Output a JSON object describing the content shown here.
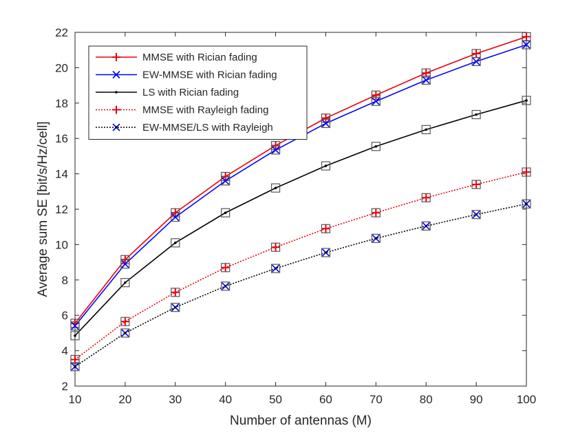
{
  "chart_data": {
    "type": "line",
    "title": "",
    "xlabel": "Number of antennas (M)",
    "ylabel": "Average sum SE [bit/s/Hz/cell]",
    "xlim": [
      10,
      100
    ],
    "ylim": [
      2,
      22
    ],
    "xticks": [
      10,
      20,
      30,
      40,
      50,
      60,
      70,
      80,
      90,
      100
    ],
    "yticks": [
      2,
      4,
      6,
      8,
      10,
      12,
      14,
      16,
      18,
      20,
      22
    ],
    "grid": false,
    "legend_position": "top-left",
    "x": [
      10,
      20,
      30,
      40,
      50,
      60,
      70,
      80,
      90,
      100
    ],
    "series": [
      {
        "name": "MMSE with Rician fading",
        "values": [
          5.55,
          9.15,
          11.8,
          13.85,
          15.6,
          17.15,
          18.45,
          19.7,
          20.8,
          21.75
        ],
        "color": "#e8000b",
        "line_style": "solid",
        "marker": "plus",
        "square_markers": true
      },
      {
        "name": "EW-MMSE with Rician fading",
        "values": [
          5.4,
          8.9,
          11.55,
          13.6,
          15.35,
          16.85,
          18.1,
          19.3,
          20.35,
          21.3
        ],
        "color": "#0000ff",
        "line_style": "solid",
        "marker": "x",
        "square_markers": true
      },
      {
        "name": "LS with Rician fading",
        "values": [
          4.85,
          7.85,
          10.1,
          11.8,
          13.2,
          14.45,
          15.55,
          16.5,
          17.35,
          18.15
        ],
        "color": "#000000",
        "line_style": "solid",
        "marker": "dot",
        "square_markers": true
      },
      {
        "name": "MMSE with Rayleigh fading",
        "values": [
          3.5,
          5.65,
          7.3,
          8.7,
          9.85,
          10.9,
          11.8,
          12.65,
          13.4,
          14.1
        ],
        "color": "#e8000b",
        "line_style": "dotted",
        "marker": "plus",
        "square_markers": true
      },
      {
        "name": "EW-MMSE/LS with Rayleigh",
        "values": [
          3.1,
          5.0,
          6.45,
          7.65,
          8.65,
          9.55,
          10.35,
          11.05,
          11.7,
          12.3
        ],
        "color": "#000000",
        "line_style": "dotted",
        "marker": "x-dot",
        "square_markers": true
      }
    ]
  }
}
